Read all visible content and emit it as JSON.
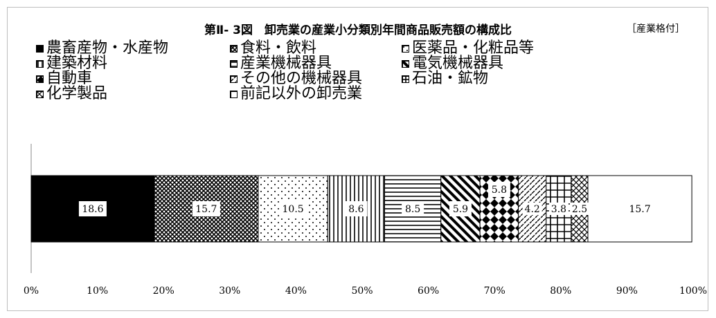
{
  "chart_data": {
    "type": "bar",
    "orientation": "horizontal-stacked-100",
    "title": "第Ⅱ- 3図　卸売業の産業小分類別年間商品販売額の構成比",
    "unit_note": "［産業格付］",
    "categories": [
      ""
    ],
    "series": [
      {
        "name": "農畜産物・水産物",
        "value": 18.6,
        "label": "18.6",
        "pattern": "solid-black"
      },
      {
        "name": "食料・飲料",
        "value": 15.7,
        "label": "15.7",
        "pattern": "crosshatch"
      },
      {
        "name": "医薬品・化粧品等",
        "value": 10.5,
        "label": "10.5",
        "pattern": "dots"
      },
      {
        "name": "建築材料",
        "value": 8.6,
        "label": "8.6",
        "pattern": "vertical"
      },
      {
        "name": "産業機械器具",
        "value": 8.5,
        "label": "8.5",
        "pattern": "horizontal"
      },
      {
        "name": "電気機械器具",
        "value": 5.9,
        "label": "5.9",
        "pattern": "wide-diagonal"
      },
      {
        "name": "自動車",
        "value": 5.8,
        "label": "5.8",
        "pattern": "diamond"
      },
      {
        "name": "その他の機械器具",
        "value": 4.2,
        "label": "4.2",
        "pattern": "dash-diagonal"
      },
      {
        "name": "石油・鉱物",
        "value": 3.8,
        "label": "3.8",
        "pattern": "grid"
      },
      {
        "name": "化学製品",
        "value": 2.5,
        "label": "2.5",
        "pattern": "cross-diagonal"
      },
      {
        "name": "前記以外の卸売業",
        "value": 15.7,
        "label": "15.7",
        "pattern": "white"
      }
    ],
    "xlim": [
      0,
      100
    ],
    "x_ticks": [
      "0%",
      "10%",
      "20%",
      "30%",
      "40%",
      "50%",
      "60%",
      "70%",
      "80%",
      "90%",
      "100%"
    ],
    "legend_placement": "top",
    "grid": false
  }
}
